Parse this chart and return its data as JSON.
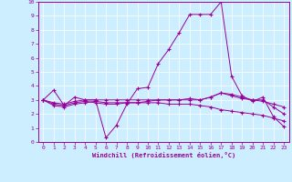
{
  "xlabel": "Windchill (Refroidissement éolien,°C)",
  "background_color": "#cceeff",
  "line_color": "#990099",
  "grid_color": "#aaddcc",
  "xlim": [
    -0.5,
    23.5
  ],
  "ylim": [
    0,
    10
  ],
  "xticks": [
    0,
    1,
    2,
    3,
    4,
    5,
    6,
    7,
    8,
    9,
    10,
    11,
    12,
    13,
    14,
    15,
    16,
    17,
    18,
    19,
    20,
    21,
    22,
    23
  ],
  "yticks": [
    0,
    1,
    2,
    3,
    4,
    5,
    6,
    7,
    8,
    9,
    10
  ],
  "series": [
    {
      "x": [
        0,
        1,
        2,
        3,
        4,
        5,
        6,
        7,
        8,
        9,
        10,
        11,
        12,
        13,
        14,
        15,
        16,
        17,
        18,
        19,
        20,
        21,
        22,
        23
      ],
      "y": [
        3.0,
        3.7,
        2.6,
        3.2,
        3.0,
        3.0,
        0.3,
        1.2,
        2.7,
        3.8,
        3.9,
        5.6,
        6.6,
        7.8,
        9.1,
        9.1,
        9.1,
        10.0,
        4.7,
        3.3,
        2.9,
        3.2,
        1.8,
        1.1
      ]
    },
    {
      "x": [
        0,
        1,
        2,
        3,
        4,
        5,
        6,
        7,
        8,
        9,
        10,
        11,
        12,
        13,
        14,
        15,
        16,
        17,
        18,
        19,
        20,
        21,
        22,
        23
      ],
      "y": [
        3.0,
        2.7,
        2.6,
        2.8,
        2.9,
        2.8,
        2.7,
        2.7,
        2.8,
        2.8,
        2.9,
        3.0,
        3.0,
        3.0,
        3.1,
        3.0,
        3.2,
        3.5,
        3.3,
        3.1,
        3.0,
        2.9,
        2.7,
        2.5
      ]
    },
    {
      "x": [
        0,
        1,
        2,
        3,
        4,
        5,
        6,
        7,
        8,
        9,
        10,
        11,
        12,
        13,
        14,
        15,
        16,
        17,
        18,
        19,
        20,
        21,
        22,
        23
      ],
      "y": [
        3.0,
        2.6,
        2.5,
        2.7,
        2.8,
        2.9,
        2.8,
        2.8,
        2.8,
        2.8,
        2.8,
        2.8,
        2.7,
        2.7,
        2.7,
        2.6,
        2.5,
        2.3,
        2.2,
        2.1,
        2.0,
        1.9,
        1.7,
        1.5
      ]
    },
    {
      "x": [
        0,
        1,
        2,
        3,
        4,
        5,
        6,
        7,
        8,
        9,
        10,
        11,
        12,
        13,
        14,
        15,
        16,
        17,
        18,
        19,
        20,
        21,
        22,
        23
      ],
      "y": [
        3.0,
        2.8,
        2.7,
        2.9,
        3.0,
        3.0,
        3.0,
        3.0,
        3.0,
        3.0,
        3.0,
        3.0,
        3.0,
        3.0,
        3.0,
        3.0,
        3.2,
        3.5,
        3.4,
        3.2,
        3.0,
        3.0,
        2.5,
        2.0
      ]
    }
  ]
}
